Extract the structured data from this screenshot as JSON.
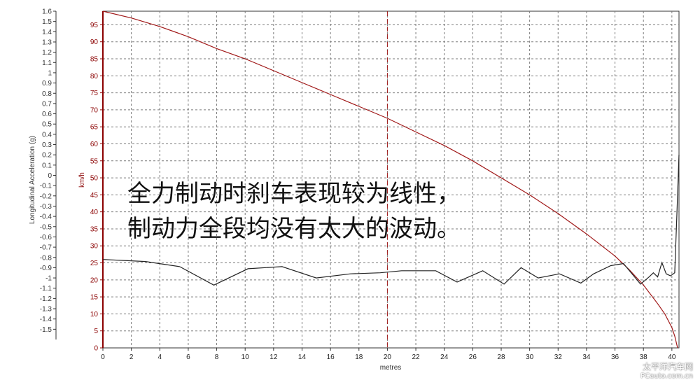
{
  "chart_data": {
    "type": "line",
    "xlabel": "metres",
    "y_left_label": "Longitudinal Acceleration (g)",
    "y_right_label": "km/h",
    "xlim": [
      0,
      40.5
    ],
    "x_ticks": [
      0,
      2,
      4,
      6,
      8,
      10,
      12,
      14,
      16,
      18,
      20,
      22,
      24,
      26,
      28,
      30,
      32,
      34,
      36,
      38,
      40
    ],
    "y_left_lim": [
      -1.6,
      1.6
    ],
    "y_left_ticks": [
      "1.6",
      "1.5",
      "1.4",
      "1.3",
      "1.2",
      "1.1",
      "1",
      "0.9",
      "0.8",
      "0.7",
      "0.6",
      "0.5",
      "0.4",
      "0.3",
      "0.2",
      "0.1",
      "0",
      "-0.1",
      "-0.2",
      "-0.3",
      "-0.4",
      "-0.5",
      "-0.6",
      "-0.7",
      "-0.8",
      "-0.9",
      "-1",
      "-1.1",
      "-1.2",
      "-1.3",
      "-1.4",
      "-1.5"
    ],
    "y_speed_lim": [
      0,
      99
    ],
    "y_speed_ticks": [
      95,
      90,
      85,
      80,
      75,
      70,
      65,
      60,
      55,
      50,
      45,
      40,
      35,
      30,
      25,
      20,
      15,
      10,
      5,
      0
    ],
    "grid": true,
    "marker_x": 20,
    "series": [
      {
        "axis": "speed",
        "color": "#a01818",
        "x": [
          0,
          2,
          4,
          6,
          8,
          10,
          12,
          14,
          16,
          18,
          20,
          22,
          24,
          26,
          28,
          30,
          32,
          34,
          36,
          37,
          38,
          39,
          39.5,
          40,
          40.2,
          40.4
        ],
        "values": [
          99,
          97,
          94.5,
          91.5,
          88,
          85,
          81.5,
          78,
          74.5,
          71,
          67.5,
          63.5,
          59.5,
          55,
          50,
          45,
          39.5,
          33.5,
          27,
          23,
          18.5,
          13,
          10,
          6,
          3.5,
          0
        ]
      },
      {
        "axis": "g",
        "color": "#222222",
        "x": [
          0,
          1.5,
          3,
          5.4,
          7.8,
          10.2,
          12.6,
          15,
          17.4,
          19.5,
          21,
          23.4,
          24.9,
          26.7,
          28.2,
          29.4,
          30.6,
          32.1,
          33.6,
          34.5,
          35.7,
          36.6,
          37.8,
          38.4,
          38.7,
          39,
          39.3,
          39.6,
          39.9,
          40.2,
          40.35,
          40.5
        ],
        "values": [
          -0.82,
          -0.83,
          -0.84,
          -0.89,
          -1.07,
          -0.91,
          -0.89,
          -1,
          -0.96,
          -0.95,
          -0.93,
          -0.93,
          -1.04,
          -0.93,
          -1.06,
          -0.9,
          -1,
          -0.96,
          -1.05,
          -0.96,
          -0.88,
          -0.86,
          -1.06,
          -0.99,
          -0.95,
          -0.99,
          -0.85,
          -0.96,
          -0.98,
          -0.95,
          -0.38,
          0.2
        ]
      }
    ]
  },
  "annotation": {
    "line1": "全力制动时刹车表现较为线性，",
    "line2": "制动力全段均没有太大的波动。"
  },
  "watermark": {
    "line1": "太平洋汽车网",
    "line2": "PCauto.com.cn"
  }
}
